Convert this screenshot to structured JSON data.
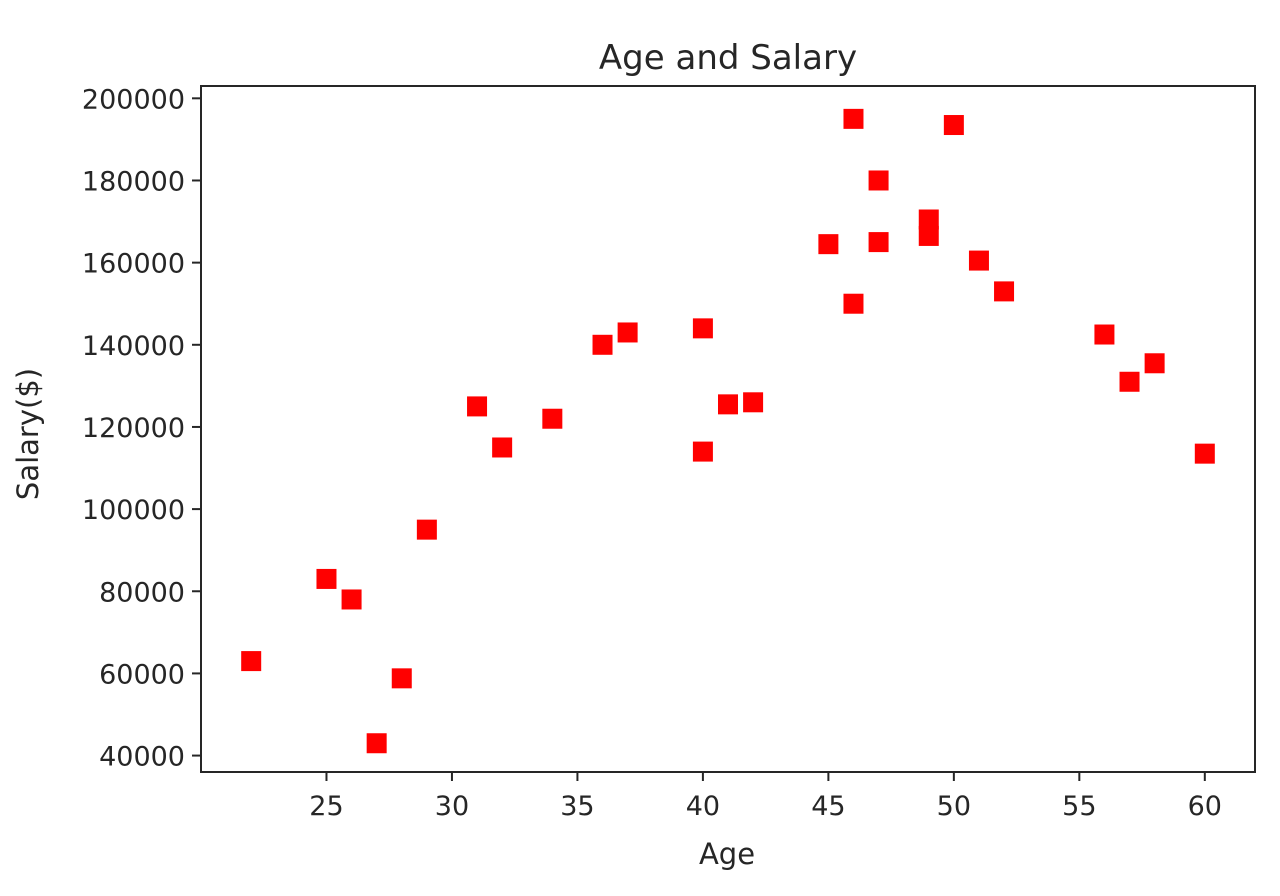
{
  "chart_data": {
    "type": "scatter",
    "title": "Age and Salary",
    "xlabel": "Age",
    "ylabel": "Salary($)",
    "xlim": [
      20,
      62
    ],
    "ylim": [
      36000,
      203000
    ],
    "xticks": [
      25,
      30,
      35,
      40,
      45,
      50,
      55,
      60
    ],
    "yticks": [
      40000,
      60000,
      80000,
      100000,
      120000,
      140000,
      160000,
      180000,
      200000
    ],
    "grid": false,
    "marker": "square",
    "color": "#ff0000",
    "series": [
      {
        "x": [
          22,
          25,
          26,
          27,
          28,
          29,
          31,
          32,
          34,
          36,
          37,
          40,
          40,
          41,
          42,
          45,
          46,
          46,
          47,
          47,
          49,
          49,
          50,
          51,
          52,
          56,
          57,
          58,
          60
        ],
        "y": [
          63000,
          83000,
          78000,
          43000,
          58800,
          95000,
          125000,
          115000,
          122000,
          140000,
          143000,
          144000,
          114000,
          125500,
          126000,
          164500,
          195000,
          150000,
          180000,
          165000,
          170500,
          166500,
          193500,
          160500,
          153000,
          142500,
          131000,
          135500,
          113500
        ]
      }
    ]
  }
}
